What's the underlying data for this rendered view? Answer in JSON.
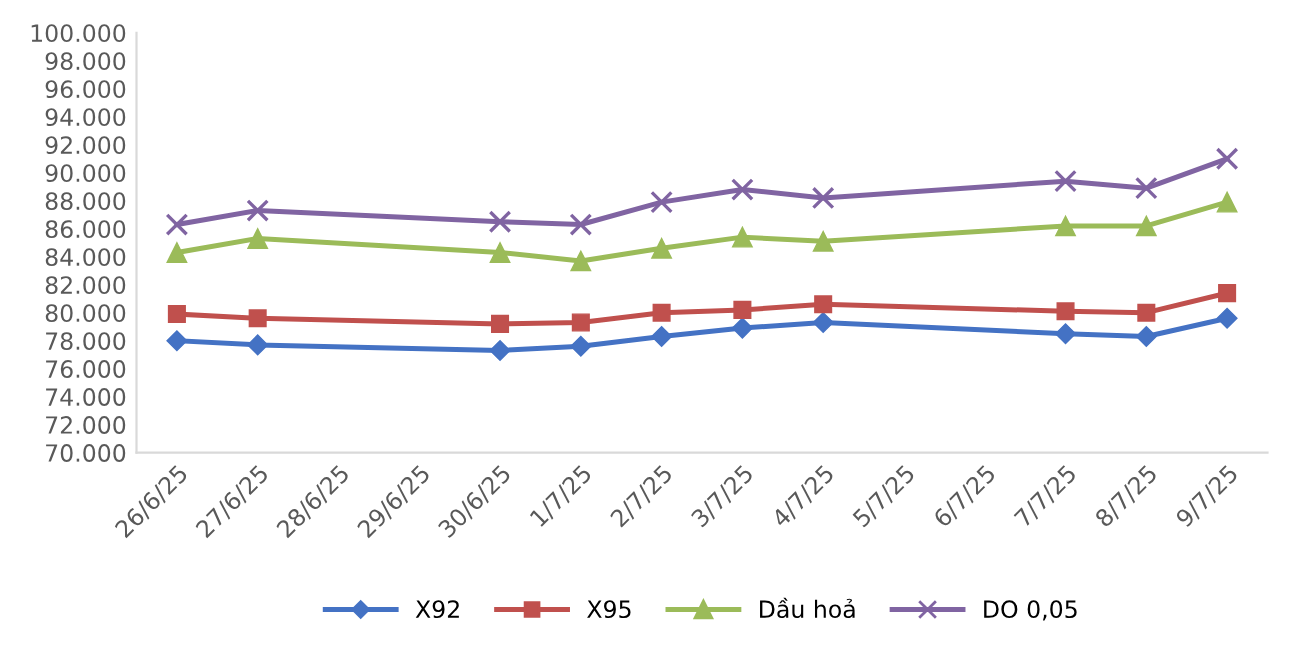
{
  "chart_data": {
    "type": "line",
    "categories": [
      "26/6/25",
      "27/6/25",
      "28/6/25",
      "29/6/25",
      "30/6/25",
      "1/7/25",
      "2/7/25",
      "3/7/25",
      "4/7/25",
      "5/7/25",
      "6/7/25",
      "7/7/25",
      "8/7/25",
      "9/7/25"
    ],
    "series": [
      {
        "name": "X92",
        "color": "#4472c4",
        "marker": "diamond",
        "values": [
          78.0,
          77.7,
          null,
          null,
          77.3,
          77.6,
          78.3,
          78.9,
          79.3,
          null,
          null,
          78.5,
          78.3,
          79.6
        ]
      },
      {
        "name": "X95",
        "color": "#c0504d",
        "marker": "square",
        "values": [
          79.9,
          79.6,
          null,
          null,
          79.2,
          79.3,
          80.0,
          80.2,
          80.6,
          null,
          null,
          80.1,
          80.0,
          81.4
        ]
      },
      {
        "name": "Dầu hoả",
        "color": "#9bbb59",
        "marker": "triangle",
        "values": [
          84.3,
          85.3,
          null,
          null,
          84.3,
          83.7,
          84.6,
          85.4,
          85.1,
          null,
          null,
          86.2,
          86.2,
          87.9
        ]
      },
      {
        "name": "DO 0,05",
        "color": "#8064a2",
        "marker": "cross",
        "values": [
          86.3,
          87.3,
          null,
          null,
          86.5,
          86.3,
          87.9,
          88.8,
          88.2,
          null,
          null,
          89.4,
          88.9,
          91.0
        ]
      }
    ],
    "ylim": [
      70,
      100
    ],
    "yticks": [
      {
        "value": 70,
        "label": "70.000"
      },
      {
        "value": 72,
        "label": "72.000"
      },
      {
        "value": 74,
        "label": "74.000"
      },
      {
        "value": 76,
        "label": "76.000"
      },
      {
        "value": 78,
        "label": "78.000"
      },
      {
        "value": 80,
        "label": "80.000"
      },
      {
        "value": 82,
        "label": "82.000"
      },
      {
        "value": 84,
        "label": "84.000"
      },
      {
        "value": 86,
        "label": "86.000"
      },
      {
        "value": 88,
        "label": "88.000"
      },
      {
        "value": 90,
        "label": "90.000"
      },
      {
        "value": 92,
        "label": "92.000"
      },
      {
        "value": 94,
        "label": "94.000"
      },
      {
        "value": 96,
        "label": "96.000"
      },
      {
        "value": 98,
        "label": "98.000"
      },
      {
        "value": 100,
        "label": "100.000"
      }
    ],
    "grid": false,
    "legend": "bottom",
    "line_style": "solid"
  }
}
